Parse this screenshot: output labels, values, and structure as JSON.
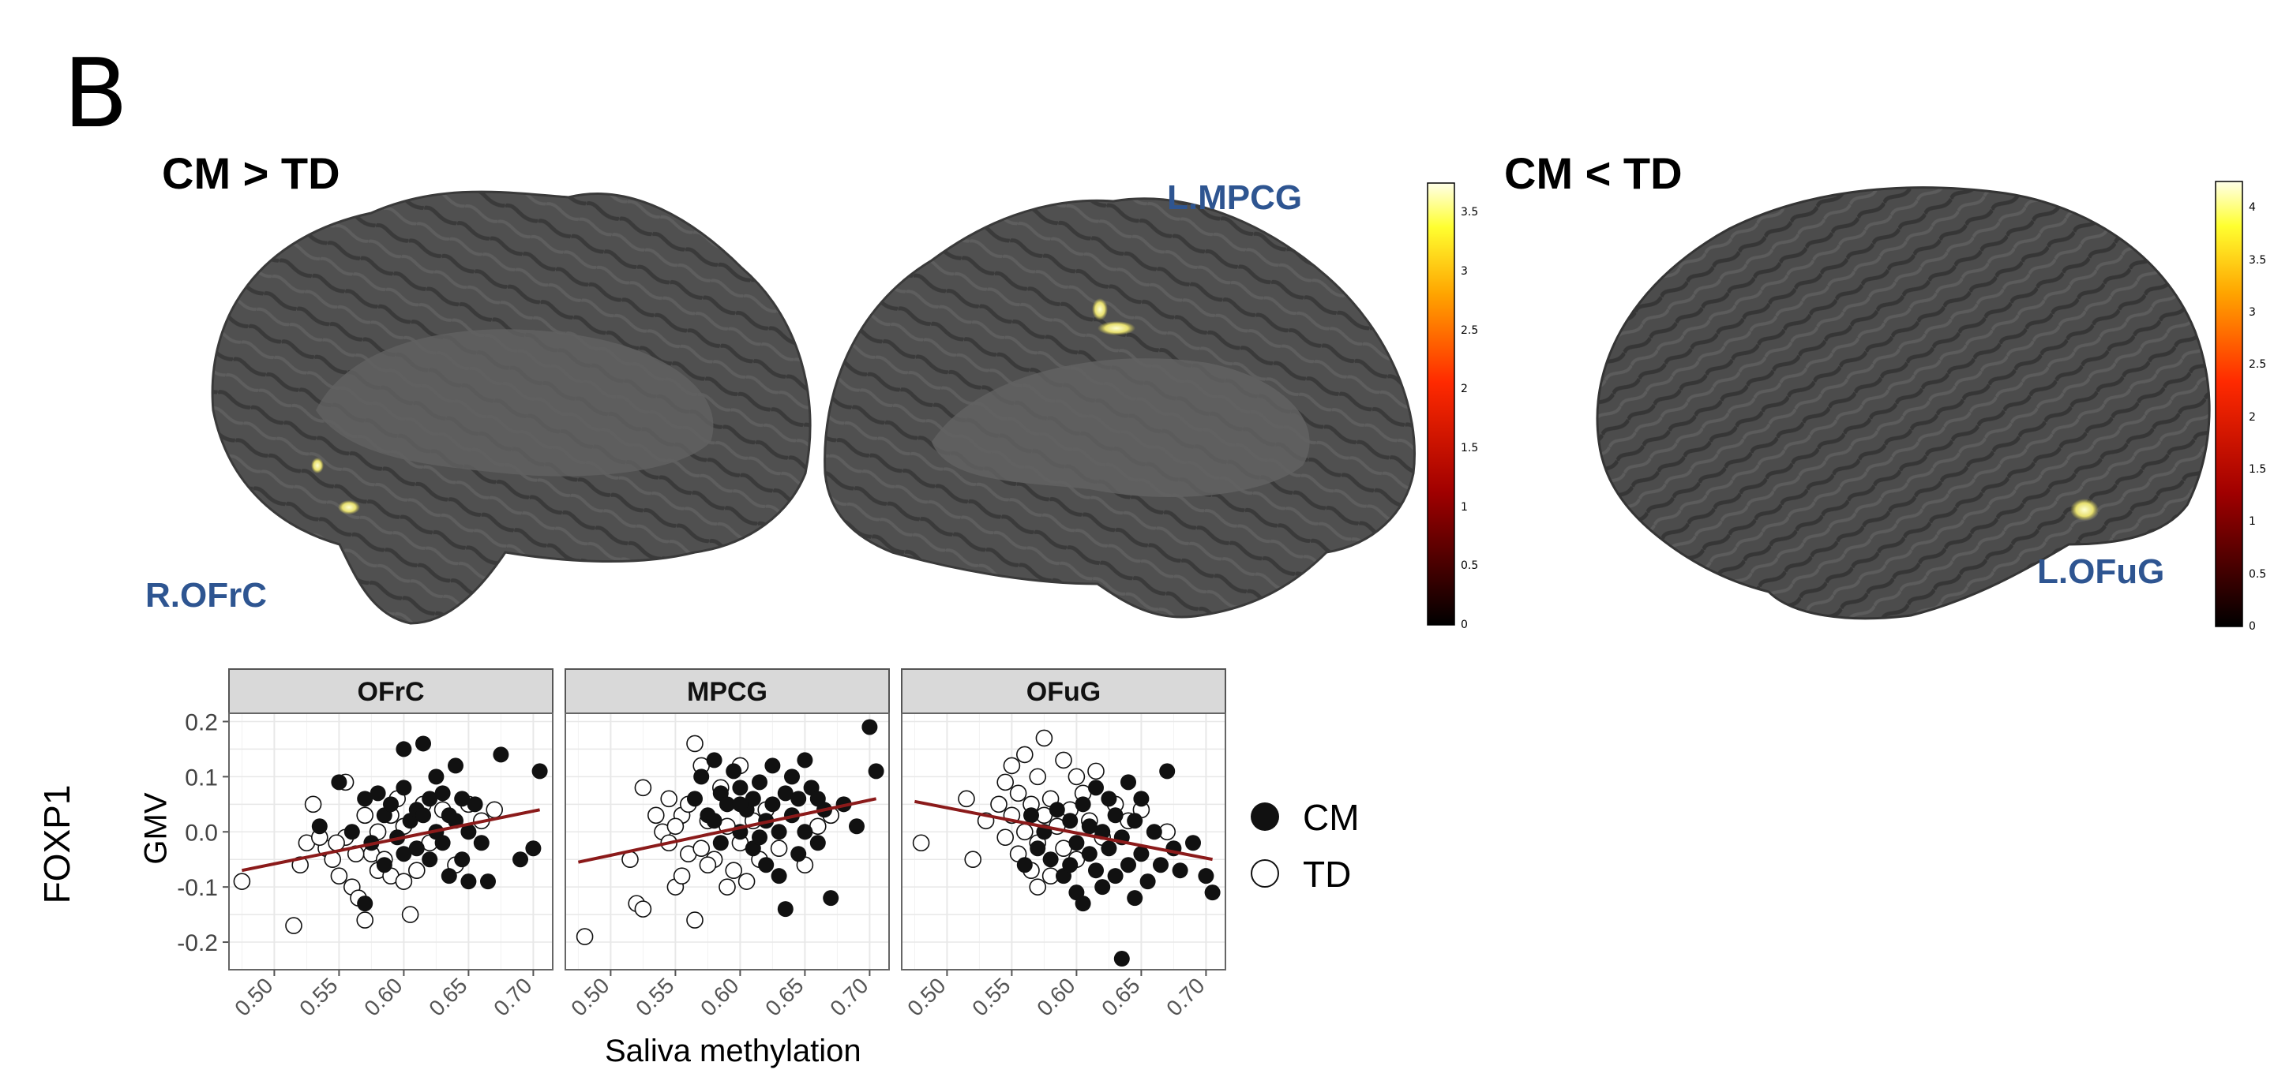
{
  "figure": {
    "panel_letter": "B",
    "contrasts": [
      {
        "label": "CM > TD"
      },
      {
        "label": "CM < TD"
      }
    ],
    "regions": {
      "r_ofrc": "R.OFrC",
      "l_mpcg": "L.MPCG",
      "l_ofug": "L.OFuG"
    },
    "colors": {
      "brain_surface": "#4a4a4a",
      "region_label": "#2e5591",
      "fit_line": "#8b1a1a",
      "strip_bg": "#d9d9d9",
      "panel_border": "#666666",
      "grid": "#e8e8e8"
    },
    "colorbars": [
      {
        "id": "cbar1",
        "ticks": [
          "3.5",
          "3",
          "2.5",
          "2",
          "1.5",
          "1",
          "0.5",
          "0"
        ],
        "max": 3.75
      },
      {
        "id": "cbar2",
        "ticks": [
          "4",
          "3.5",
          "3",
          "2.5",
          "2",
          "1.5",
          "1",
          "0.5",
          "0"
        ],
        "max": 4.25
      }
    ]
  },
  "chart_data": {
    "type": "scatter",
    "ylabel_line1": "FOXP1",
    "ylabel_line2": "GMV",
    "xlabel": "Saliva methylation",
    "xlim": [
      0.465,
      0.715
    ],
    "ylim": [
      -0.25,
      0.215
    ],
    "xticks": [
      "0.50",
      "0.55",
      "0.60",
      "0.65",
      "0.70"
    ],
    "yticks": [
      "0.2",
      "0.1",
      "0.0",
      "-0.1",
      "-0.2"
    ],
    "legend": {
      "position": "right",
      "items": [
        {
          "label": "CM",
          "filled": true
        },
        {
          "label": "TD",
          "filled": false
        }
      ]
    },
    "facets": [
      {
        "title": "OFrC",
        "fit": [
          [
            0.475,
            -0.07
          ],
          [
            0.705,
            0.04
          ]
        ],
        "CM": [
          [
            0.535,
            0.01
          ],
          [
            0.55,
            0.09
          ],
          [
            0.56,
            0.0
          ],
          [
            0.57,
            0.06
          ],
          [
            0.575,
            -0.02
          ],
          [
            0.58,
            0.07
          ],
          [
            0.585,
            0.03
          ],
          [
            0.59,
            0.05
          ],
          [
            0.595,
            -0.01
          ],
          [
            0.6,
            0.15
          ],
          [
            0.6,
            0.08
          ],
          [
            0.605,
            0.02
          ],
          [
            0.61,
            0.04
          ],
          [
            0.61,
            -0.03
          ],
          [
            0.615,
            0.16
          ],
          [
            0.62,
            0.06
          ],
          [
            0.625,
            0.0
          ],
          [
            0.625,
            0.1
          ],
          [
            0.63,
            -0.02
          ],
          [
            0.63,
            0.07
          ],
          [
            0.635,
            0.03
          ],
          [
            0.635,
            -0.08
          ],
          [
            0.64,
            0.12
          ],
          [
            0.64,
            0.02
          ],
          [
            0.645,
            -0.05
          ],
          [
            0.645,
            0.06
          ],
          [
            0.65,
            0.0
          ],
          [
            0.65,
            -0.09
          ],
          [
            0.655,
            0.05
          ],
          [
            0.66,
            -0.02
          ],
          [
            0.665,
            -0.09
          ],
          [
            0.675,
            0.14
          ],
          [
            0.69,
            -0.05
          ],
          [
            0.7,
            -0.03
          ],
          [
            0.705,
            0.11
          ],
          [
            0.57,
            -0.13
          ],
          [
            0.585,
            -0.06
          ],
          [
            0.6,
            -0.04
          ],
          [
            0.615,
            0.03
          ],
          [
            0.62,
            -0.05
          ]
        ],
        "TD": [
          [
            0.475,
            -0.09
          ],
          [
            0.515,
            -0.17
          ],
          [
            0.52,
            -0.06
          ],
          [
            0.525,
            -0.02
          ],
          [
            0.53,
            0.05
          ],
          [
            0.54,
            -0.03
          ],
          [
            0.545,
            -0.05
          ],
          [
            0.55,
            -0.08
          ],
          [
            0.555,
            0.09
          ],
          [
            0.555,
            -0.01
          ],
          [
            0.56,
            -0.1
          ],
          [
            0.565,
            -0.12
          ],
          [
            0.57,
            0.03
          ],
          [
            0.57,
            -0.16
          ],
          [
            0.575,
            -0.04
          ],
          [
            0.58,
            0.0
          ],
          [
            0.58,
            -0.07
          ],
          [
            0.585,
            -0.05
          ],
          [
            0.59,
            0.03
          ],
          [
            0.59,
            -0.08
          ],
          [
            0.595,
            0.06
          ],
          [
            0.6,
            -0.09
          ],
          [
            0.6,
            0.01
          ],
          [
            0.605,
            -0.15
          ],
          [
            0.61,
            -0.07
          ],
          [
            0.615,
            0.05
          ],
          [
            0.62,
            -0.02
          ],
          [
            0.63,
            0.04
          ],
          [
            0.64,
            -0.06
          ],
          [
            0.65,
            0.05
          ],
          [
            0.66,
            0.02
          ],
          [
            0.67,
            0.04
          ],
          [
            0.535,
            -0.01
          ],
          [
            0.548,
            -0.02
          ],
          [
            0.563,
            -0.04
          ]
        ]
      },
      {
        "title": "MPCG",
        "fit": [
          [
            0.475,
            -0.055
          ],
          [
            0.705,
            0.06
          ]
        ],
        "CM": [
          [
            0.565,
            0.06
          ],
          [
            0.57,
            0.1
          ],
          [
            0.575,
            0.03
          ],
          [
            0.58,
            0.13
          ],
          [
            0.585,
            0.07
          ],
          [
            0.585,
            -0.02
          ],
          [
            0.59,
            0.05
          ],
          [
            0.595,
            0.11
          ],
          [
            0.6,
            0.0
          ],
          [
            0.6,
            0.08
          ],
          [
            0.605,
            0.04
          ],
          [
            0.61,
            -0.03
          ],
          [
            0.61,
            0.06
          ],
          [
            0.615,
            0.09
          ],
          [
            0.62,
            0.02
          ],
          [
            0.62,
            -0.06
          ],
          [
            0.625,
            0.12
          ],
          [
            0.625,
            0.05
          ],
          [
            0.63,
            0.0
          ],
          [
            0.63,
            -0.08
          ],
          [
            0.635,
            0.07
          ],
          [
            0.635,
            -0.14
          ],
          [
            0.64,
            0.03
          ],
          [
            0.64,
            0.1
          ],
          [
            0.645,
            -0.04
          ],
          [
            0.645,
            0.06
          ],
          [
            0.65,
            0.13
          ],
          [
            0.65,
            0.0
          ],
          [
            0.655,
            0.08
          ],
          [
            0.66,
            -0.02
          ],
          [
            0.665,
            0.04
          ],
          [
            0.67,
            -0.12
          ],
          [
            0.68,
            0.05
          ],
          [
            0.69,
            0.01
          ],
          [
            0.7,
            0.19
          ],
          [
            0.705,
            0.11
          ],
          [
            0.66,
            0.06
          ],
          [
            0.6,
            0.05
          ],
          [
            0.58,
            0.02
          ],
          [
            0.615,
            -0.01
          ]
        ],
        "TD": [
          [
            0.48,
            -0.19
          ],
          [
            0.515,
            -0.05
          ],
          [
            0.52,
            -0.13
          ],
          [
            0.525,
            -0.14
          ],
          [
            0.525,
            0.08
          ],
          [
            0.535,
            0.03
          ],
          [
            0.54,
            0.0
          ],
          [
            0.545,
            0.06
          ],
          [
            0.545,
            -0.02
          ],
          [
            0.55,
            -0.1
          ],
          [
            0.555,
            0.03
          ],
          [
            0.555,
            -0.08
          ],
          [
            0.56,
            0.05
          ],
          [
            0.56,
            -0.04
          ],
          [
            0.565,
            0.16
          ],
          [
            0.565,
            -0.16
          ],
          [
            0.57,
            0.12
          ],
          [
            0.57,
            -0.03
          ],
          [
            0.575,
            0.02
          ],
          [
            0.58,
            -0.05
          ],
          [
            0.585,
            0.08
          ],
          [
            0.59,
            -0.1
          ],
          [
            0.59,
            0.01
          ],
          [
            0.595,
            -0.07
          ],
          [
            0.6,
            0.12
          ],
          [
            0.605,
            -0.09
          ],
          [
            0.61,
            0.02
          ],
          [
            0.615,
            -0.05
          ],
          [
            0.62,
            0.04
          ],
          [
            0.63,
            -0.03
          ],
          [
            0.65,
            -0.06
          ],
          [
            0.66,
            0.01
          ],
          [
            0.67,
            0.03
          ],
          [
            0.55,
            0.01
          ],
          [
            0.575,
            -0.06
          ],
          [
            0.6,
            -0.02
          ]
        ]
      },
      {
        "title": "OFuG",
        "fit": [
          [
            0.475,
            0.055
          ],
          [
            0.705,
            -0.05
          ]
        ],
        "CM": [
          [
            0.56,
            -0.06
          ],
          [
            0.565,
            0.03
          ],
          [
            0.57,
            -0.03
          ],
          [
            0.575,
            0.0
          ],
          [
            0.58,
            -0.05
          ],
          [
            0.585,
            0.04
          ],
          [
            0.59,
            -0.08
          ],
          [
            0.595,
            0.02
          ],
          [
            0.6,
            -0.02
          ],
          [
            0.6,
            -0.11
          ],
          [
            0.605,
            0.05
          ],
          [
            0.605,
            -0.13
          ],
          [
            0.61,
            -0.04
          ],
          [
            0.61,
            0.01
          ],
          [
            0.615,
            -0.07
          ],
          [
            0.615,
            0.08
          ],
          [
            0.62,
            -0.1
          ],
          [
            0.62,
            0.0
          ],
          [
            0.625,
            0.06
          ],
          [
            0.625,
            -0.03
          ],
          [
            0.63,
            -0.08
          ],
          [
            0.63,
            0.03
          ],
          [
            0.635,
            -0.01
          ],
          [
            0.635,
            -0.23
          ],
          [
            0.64,
            -0.06
          ],
          [
            0.64,
            0.09
          ],
          [
            0.645,
            -0.12
          ],
          [
            0.645,
            0.02
          ],
          [
            0.65,
            -0.04
          ],
          [
            0.65,
            0.06
          ],
          [
            0.655,
            -0.09
          ],
          [
            0.66,
            0.0
          ],
          [
            0.665,
            -0.06
          ],
          [
            0.67,
            0.11
          ],
          [
            0.675,
            -0.03
          ],
          [
            0.68,
            -0.07
          ],
          [
            0.69,
            -0.02
          ],
          [
            0.7,
            -0.08
          ],
          [
            0.705,
            -0.11
          ],
          [
            0.595,
            -0.06
          ]
        ],
        "TD": [
          [
            0.48,
            -0.02
          ],
          [
            0.515,
            0.06
          ],
          [
            0.52,
            -0.05
          ],
          [
            0.53,
            0.02
          ],
          [
            0.54,
            0.05
          ],
          [
            0.545,
            0.09
          ],
          [
            0.545,
            -0.01
          ],
          [
            0.55,
            0.12
          ],
          [
            0.55,
            0.03
          ],
          [
            0.555,
            -0.04
          ],
          [
            0.555,
            0.07
          ],
          [
            0.56,
            0.0
          ],
          [
            0.56,
            0.14
          ],
          [
            0.565,
            -0.07
          ],
          [
            0.565,
            0.05
          ],
          [
            0.57,
            0.1
          ],
          [
            0.57,
            -0.02
          ],
          [
            0.575,
            0.17
          ],
          [
            0.575,
            0.03
          ],
          [
            0.58,
            -0.08
          ],
          [
            0.58,
            0.06
          ],
          [
            0.585,
            0.01
          ],
          [
            0.59,
            0.13
          ],
          [
            0.59,
            -0.03
          ],
          [
            0.595,
            0.04
          ],
          [
            0.6,
            0.1
          ],
          [
            0.6,
            -0.05
          ],
          [
            0.605,
            0.07
          ],
          [
            0.61,
            0.02
          ],
          [
            0.615,
            0.11
          ],
          [
            0.62,
            -0.01
          ],
          [
            0.63,
            0.05
          ],
          [
            0.64,
            0.02
          ],
          [
            0.65,
            0.04
          ],
          [
            0.67,
            0.0
          ],
          [
            0.57,
            -0.1
          ]
        ]
      }
    ]
  }
}
